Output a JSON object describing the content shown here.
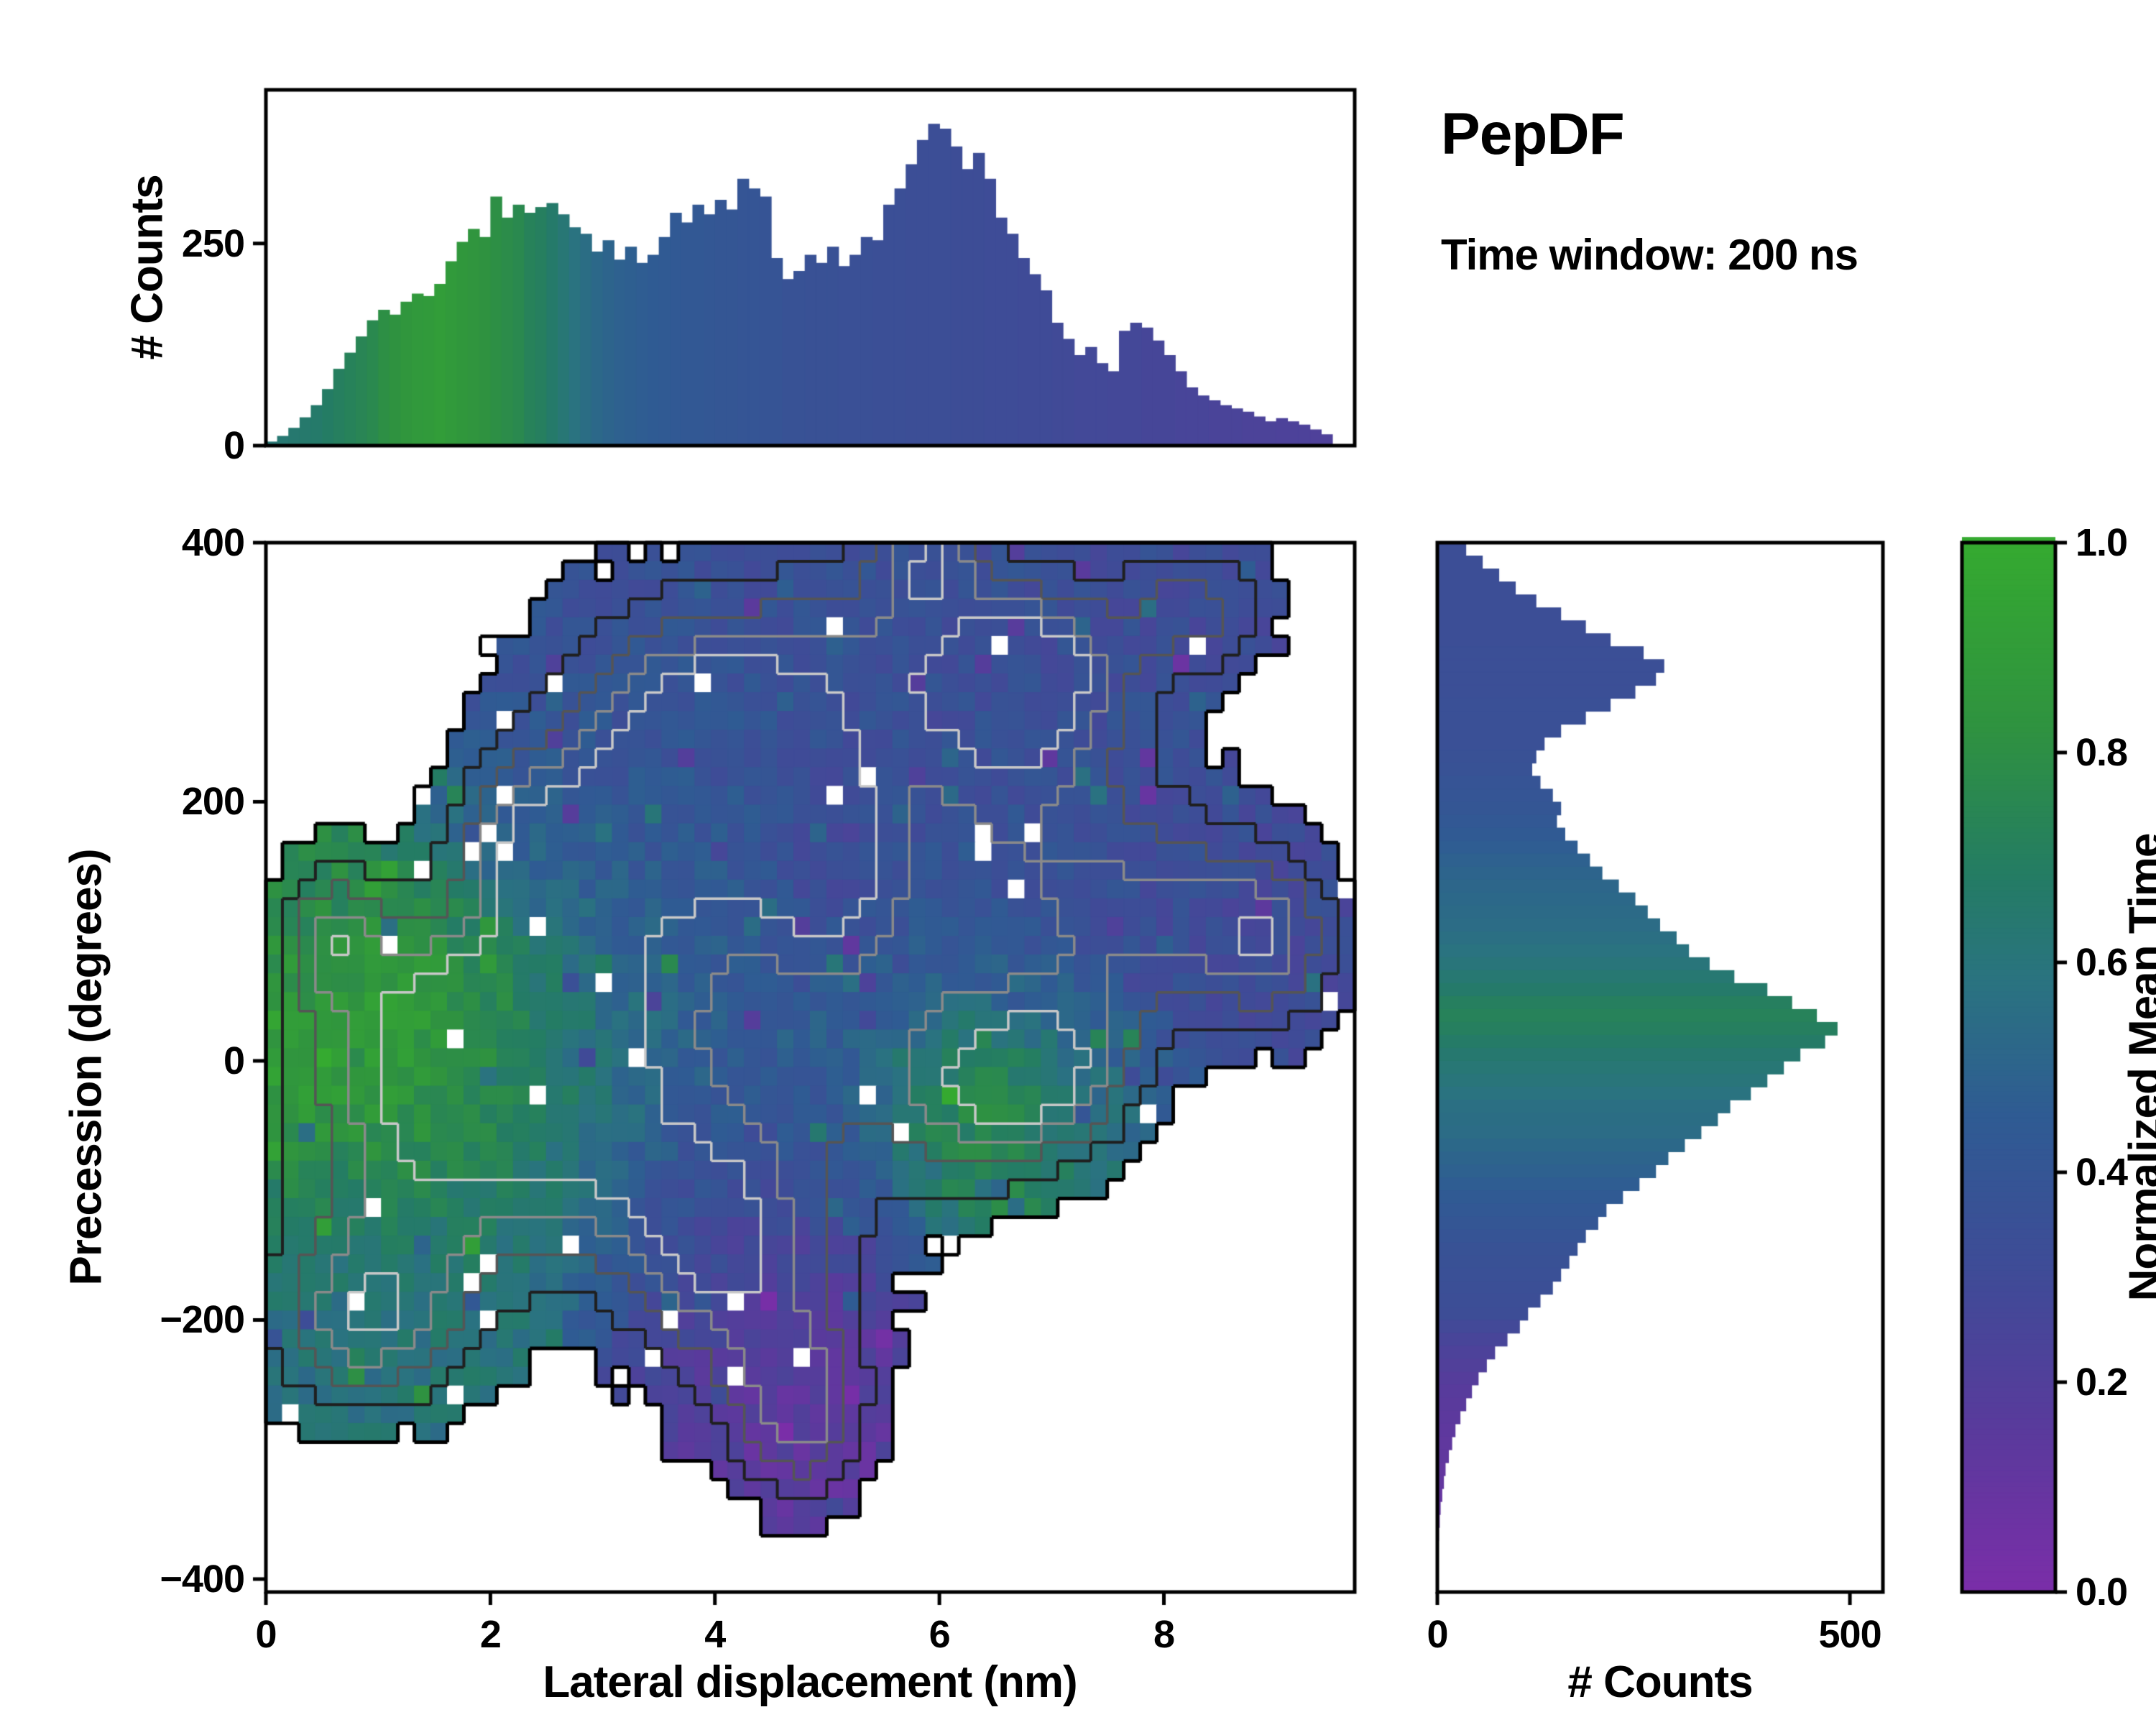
{
  "header": {
    "title": "PepDF",
    "subtitle": "Time window: 200 ns"
  },
  "colors": {
    "frame": "#000000",
    "background": "#ffffff",
    "colormap_stops": [
      [
        0.0,
        "#7a2ea8"
      ],
      [
        0.15,
        "#5a3a9c"
      ],
      [
        0.3,
        "#3f4b97"
      ],
      [
        0.45,
        "#2f5b93"
      ],
      [
        0.58,
        "#2a7380"
      ],
      [
        0.68,
        "#247c64"
      ],
      [
        0.82,
        "#2f9240"
      ],
      [
        1.0,
        "#35aa30"
      ]
    ]
  },
  "chart_data": [
    {
      "type": "bar",
      "name": "top-histogram",
      "ylabel": "# Counts",
      "x_range": [
        0,
        9.7
      ],
      "y_range": [
        0,
        440
      ],
      "yticks": [
        0,
        250
      ],
      "bin_start": 0,
      "bin_width": 0.1,
      "counts": [
        5,
        12,
        22,
        35,
        50,
        70,
        95,
        115,
        135,
        155,
        168,
        162,
        178,
        188,
        185,
        200,
        228,
        252,
        268,
        258,
        308,
        282,
        298,
        288,
        295,
        300,
        286,
        270,
        262,
        240,
        254,
        230,
        246,
        226,
        236,
        258,
        288,
        276,
        298,
        286,
        304,
        292,
        330,
        318,
        308,
        232,
        206,
        216,
        236,
        226,
        246,
        222,
        236,
        258,
        254,
        298,
        318,
        348,
        378,
        398,
        392,
        370,
        342,
        362,
        330,
        282,
        262,
        232,
        212,
        192,
        152,
        132,
        112,
        122,
        102,
        92,
        142,
        152,
        146,
        130,
        112,
        92,
        72,
        62,
        56,
        50,
        46,
        42,
        36,
        30,
        34,
        30,
        26,
        20,
        14
      ],
      "color_values": [
        0.62,
        0.63,
        0.64,
        0.65,
        0.66,
        0.68,
        0.7,
        0.72,
        0.74,
        0.76,
        0.8,
        0.82,
        0.85,
        0.87,
        0.88,
        0.9,
        0.88,
        0.86,
        0.84,
        0.82,
        0.8,
        0.78,
        0.76,
        0.72,
        0.7,
        0.66,
        0.62,
        0.58,
        0.55,
        0.52,
        0.5,
        0.48,
        0.47,
        0.46,
        0.45,
        0.44,
        0.43,
        0.42,
        0.42,
        0.41,
        0.4,
        0.4,
        0.39,
        0.39,
        0.38,
        0.38,
        0.37,
        0.37,
        0.36,
        0.36,
        0.36,
        0.35,
        0.35,
        0.35,
        0.34,
        0.34,
        0.34,
        0.33,
        0.33,
        0.33,
        0.33,
        0.32,
        0.32,
        0.32,
        0.31,
        0.31,
        0.31,
        0.3,
        0.3,
        0.3,
        0.29,
        0.29,
        0.28,
        0.28,
        0.28,
        0.27,
        0.27,
        0.27,
        0.26,
        0.26,
        0.26,
        0.25,
        0.25,
        0.25,
        0.24,
        0.24,
        0.24,
        0.23,
        0.23,
        0.23,
        0.22,
        0.22,
        0.22,
        0.21,
        0.21
      ]
    },
    {
      "type": "heatmap",
      "name": "main-2d-histogram",
      "xlabel": "Lateral displacement (nm)",
      "ylabel": "Precession (degrees)",
      "color_label": "Normalized Mean Time",
      "x_range": [
        0,
        9.7
      ],
      "y_range": [
        -410,
        400
      ],
      "xticks": [
        0,
        2,
        4,
        6,
        8
      ],
      "yticks": [
        -400,
        -200,
        0,
        200,
        400
      ],
      "grid": {
        "nx": 66,
        "ny": 56
      },
      "seed": 42,
      "occupancy_threshold": 0.3,
      "occupancy_noise": 0.16,
      "min_density": 0.15,
      "hole_fraction": 0.018,
      "value_noise": 0.14,
      "outlier_fraction": 0.06,
      "outlier_amplitude": 0.5,
      "contours": {
        "outer_color": "#000000",
        "outer_width": 5,
        "inner_levels": [
          [
            0.65,
            "#1f1f1f",
            4
          ],
          [
            1.0,
            "#555555",
            3.5
          ],
          [
            1.3,
            "#8a8a8a",
            3.5
          ],
          [
            1.55,
            "#c8c8c8",
            3.5
          ]
        ]
      },
      "blobs": [
        {
          "x": 1.1,
          "y": 10,
          "rx": 1.1,
          "ry": 110,
          "v": 0.97
        },
        {
          "x": 2.0,
          "y": 30,
          "rx": 0.9,
          "ry": 90,
          "v": 0.8
        },
        {
          "x": 1.3,
          "y": -130,
          "rx": 1.2,
          "ry": 110,
          "v": 0.62
        },
        {
          "x": 0.8,
          "y": -210,
          "rx": 0.9,
          "ry": 70,
          "v": 0.58
        },
        {
          "x": 2.6,
          "y": -40,
          "rx": 0.9,
          "ry": 100,
          "v": 0.66
        },
        {
          "x": 3.2,
          "y": 90,
          "rx": 1.1,
          "ry": 140,
          "v": 0.46
        },
        {
          "x": 3.6,
          "y": 260,
          "rx": 1.4,
          "ry": 110,
          "v": 0.36
        },
        {
          "x": 5.6,
          "y": 310,
          "rx": 1.7,
          "ry": 95,
          "v": 0.34
        },
        {
          "x": 5.9,
          "y": 390,
          "rx": 0.5,
          "ry": 40,
          "v": 0.34
        },
        {
          "x": 6.6,
          "y": 170,
          "rx": 1.4,
          "ry": 140,
          "v": 0.36
        },
        {
          "x": 8.1,
          "y": 110,
          "rx": 1.1,
          "ry": 90,
          "v": 0.31
        },
        {
          "x": 9.0,
          "y": 90,
          "rx": 0.6,
          "ry": 70,
          "v": 0.3
        },
        {
          "x": 8.3,
          "y": 350,
          "rx": 0.7,
          "ry": 55,
          "v": 0.31
        },
        {
          "x": 5.0,
          "y": 20,
          "rx": 1.4,
          "ry": 140,
          "v": 0.46
        },
        {
          "x": 6.4,
          "y": -30,
          "rx": 0.75,
          "ry": 75,
          "v": 0.92
        },
        {
          "x": 4.4,
          "y": -190,
          "rx": 1.0,
          "ry": 110,
          "v": 0.16
        },
        {
          "x": 4.8,
          "y": -280,
          "rx": 0.6,
          "ry": 70,
          "v": 0.13
        },
        {
          "x": 5.0,
          "y": 160,
          "rx": 0.55,
          "ry": 65,
          "v": 0.2
        },
        {
          "x": 4.1,
          "y": 210,
          "rx": 0.9,
          "ry": 90,
          "v": 0.42
        },
        {
          "x": 3.7,
          "y": -120,
          "rx": 0.9,
          "ry": 90,
          "v": 0.36
        },
        {
          "x": 2.3,
          "y": 170,
          "rx": 0.7,
          "ry": 70,
          "v": 0.48
        },
        {
          "x": 0.6,
          "y": 100,
          "rx": 0.5,
          "ry": 60,
          "v": 0.7
        },
        {
          "x": 7.2,
          "y": -10,
          "rx": 0.7,
          "ry": 70,
          "v": 0.55
        },
        {
          "x": 6.9,
          "y": 300,
          "rx": 0.8,
          "ry": 70,
          "v": 0.33
        }
      ]
    },
    {
      "type": "bar",
      "orientation": "horizontal",
      "name": "right-histogram",
      "xlabel": "# Counts",
      "x_range": [
        0,
        540
      ],
      "y_range": [
        -410,
        400
      ],
      "xticks": [
        0,
        500
      ],
      "bin_top": 400,
      "bin_height": 10,
      "counts": [
        35,
        55,
        75,
        95,
        120,
        150,
        180,
        210,
        250,
        275,
        265,
        240,
        210,
        180,
        150,
        130,
        120,
        115,
        125,
        140,
        150,
        145,
        155,
        170,
        185,
        200,
        220,
        240,
        255,
        270,
        290,
        305,
        330,
        360,
        400,
        430,
        460,
        485,
        470,
        440,
        420,
        400,
        380,
        355,
        340,
        320,
        300,
        280,
        265,
        245,
        225,
        205,
        195,
        180,
        170,
        160,
        150,
        140,
        125,
        110,
        100,
        85,
        70,
        60,
        50,
        42,
        35,
        28,
        22,
        18,
        14,
        10,
        8,
        6,
        4,
        3,
        2,
        1,
        1,
        0
      ],
      "color_values": [
        0.33,
        0.33,
        0.33,
        0.33,
        0.33,
        0.33,
        0.33,
        0.33,
        0.34,
        0.34,
        0.34,
        0.34,
        0.35,
        0.35,
        0.35,
        0.35,
        0.36,
        0.37,
        0.38,
        0.39,
        0.4,
        0.42,
        0.44,
        0.46,
        0.48,
        0.5,
        0.51,
        0.52,
        0.53,
        0.54,
        0.56,
        0.58,
        0.6,
        0.63,
        0.66,
        0.7,
        0.72,
        0.7,
        0.67,
        0.64,
        0.62,
        0.6,
        0.58,
        0.56,
        0.55,
        0.54,
        0.52,
        0.5,
        0.48,
        0.46,
        0.44,
        0.42,
        0.4,
        0.38,
        0.37,
        0.36,
        0.35,
        0.34,
        0.33,
        0.32,
        0.28,
        0.25,
        0.22,
        0.2,
        0.18,
        0.16,
        0.15,
        0.14,
        0.13,
        0.12,
        0.12,
        0.11,
        0.11,
        0.1,
        0.1,
        0.1,
        0.1,
        0.1,
        0.1,
        0.1
      ]
    },
    {
      "type": "colorbar",
      "name": "colorbar",
      "label": "Normalized Mean Time",
      "range": [
        0,
        1
      ],
      "ticks": [
        "0.0",
        "0.2",
        "0.4",
        "0.6",
        "0.8",
        "1.0"
      ]
    }
  ]
}
